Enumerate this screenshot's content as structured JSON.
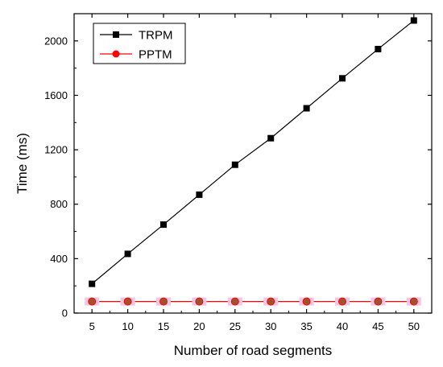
{
  "chart_data": {
    "type": "line",
    "xlabel": "Number of road segments",
    "ylabel": "Time (ms)",
    "x": [
      5,
      10,
      15,
      20,
      25,
      30,
      35,
      40,
      45,
      50
    ],
    "xlim": [
      2.5,
      52.5
    ],
    "ylim": [
      0,
      2200
    ],
    "xticks": [
      5,
      10,
      15,
      20,
      25,
      30,
      35,
      40,
      45,
      50
    ],
    "yticks": [
      0,
      400,
      800,
      1200,
      1600,
      2000
    ],
    "grid": false,
    "legend": "top-left",
    "series": [
      {
        "name": "TRPM",
        "color": "#000000",
        "marker": "square",
        "values": [
          215,
          435,
          650,
          870,
          1090,
          1285,
          1505,
          1725,
          1940,
          2150
        ]
      },
      {
        "name": "PPTM",
        "color": "#ff0000",
        "marker": "circle",
        "values": [
          85,
          85,
          85,
          85,
          85,
          85,
          85,
          85,
          85,
          85
        ]
      }
    ]
  }
}
